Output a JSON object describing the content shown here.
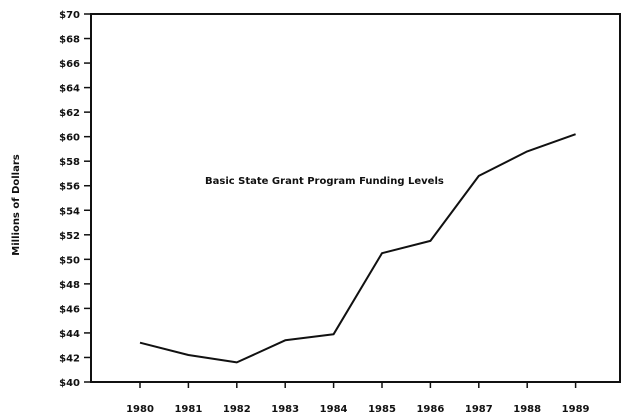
{
  "chart_data": {
    "type": "line",
    "title": "Basic State Grant Program Funding Levels",
    "xlabel": "",
    "ylabel": "Millions of Dollars",
    "categories": [
      "1980",
      "1981",
      "1982",
      "1983",
      "1984",
      "1985",
      "1986",
      "1987",
      "1988",
      "1989"
    ],
    "values": [
      43.2,
      42.2,
      41.6,
      43.4,
      43.9,
      50.5,
      51.5,
      56.8,
      58.8,
      60.2
    ],
    "ylim": [
      40,
      70
    ],
    "yticks": [
      "$40",
      "$42",
      "$44",
      "$46",
      "$48",
      "$50",
      "$52",
      "$54",
      "$56",
      "$58",
      "$60",
      "$62",
      "$64",
      "$66",
      "$68",
      "$70"
    ],
    "grid": false,
    "legend": null,
    "line_color": "#111111"
  }
}
